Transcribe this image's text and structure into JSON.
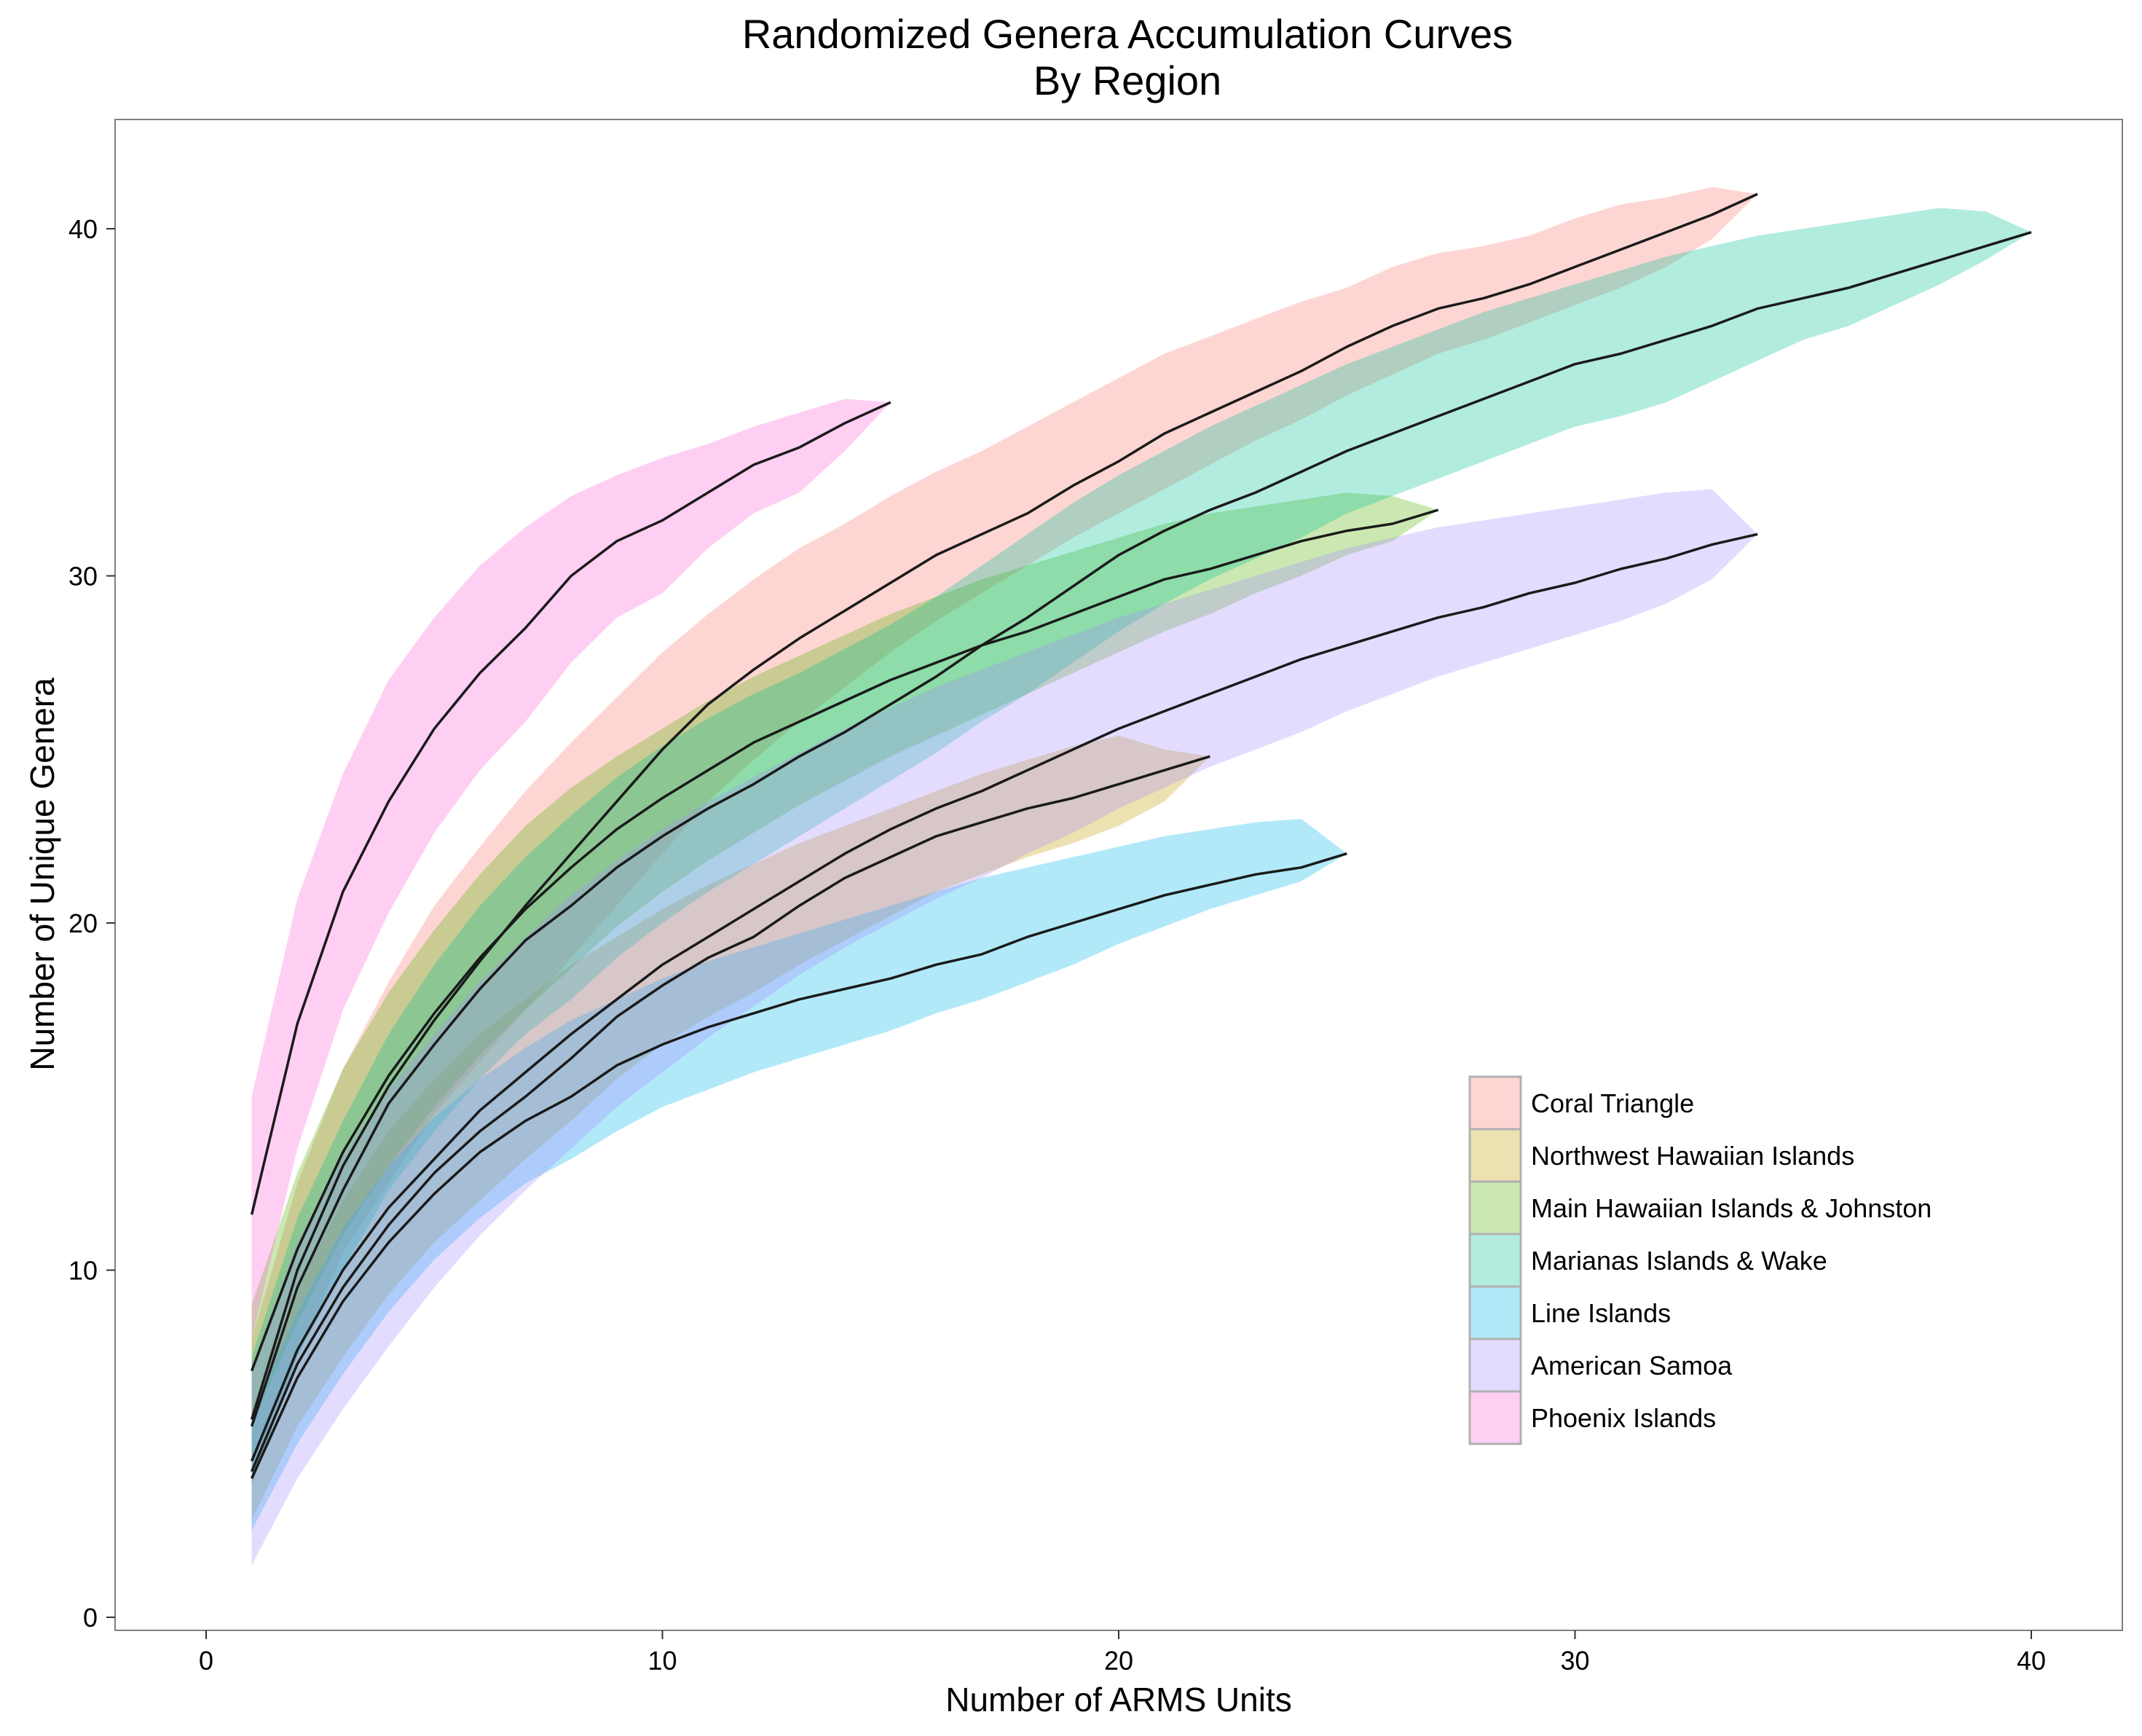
{
  "chart_data": {
    "type": "area",
    "title": "Randomized Genera Accumulation Curves",
    "subtitle": "By Region",
    "xlabel": "Number of ARMS Units",
    "ylabel": "Number of Unique Genera",
    "xlim": [
      -2,
      42
    ],
    "ylim": [
      -0.5,
      43
    ],
    "xticks": [
      0,
      10,
      20,
      30,
      40
    ],
    "yticks": [
      0,
      10,
      20,
      30,
      40
    ],
    "grid": false,
    "legend_position": "right-inside",
    "series": [
      {
        "name": "Coral Triangle",
        "color": "#F8766D",
        "x": [
          1,
          2,
          3,
          4,
          5,
          6,
          7,
          8,
          9,
          10,
          11,
          12,
          13,
          14,
          15,
          16,
          17,
          18,
          19,
          20,
          21,
          22,
          23,
          24,
          25,
          26,
          27,
          28,
          29,
          30,
          31,
          32,
          33,
          34
        ],
        "mean": [
          5.7,
          10.0,
          13.0,
          15.3,
          17.2,
          18.9,
          20.5,
          22.0,
          23.5,
          25.0,
          26.3,
          27.3,
          28.2,
          29.0,
          29.8,
          30.6,
          31.2,
          31.8,
          32.6,
          33.3,
          34.1,
          34.7,
          35.3,
          35.9,
          36.6,
          37.2,
          37.7,
          38.0,
          38.4,
          38.9,
          39.4,
          39.9,
          40.4,
          41.0
        ],
        "lower": [
          3.8,
          7.5,
          10.5,
          12.5,
          14.5,
          16.0,
          17.5,
          19.0,
          20.5,
          22.0,
          23.5,
          24.7,
          25.8,
          26.8,
          27.8,
          28.7,
          29.5,
          30.3,
          31.1,
          31.8,
          32.5,
          33.2,
          33.9,
          34.5,
          35.2,
          35.8,
          36.4,
          36.8,
          37.3,
          37.8,
          38.3,
          38.9,
          39.7,
          41.0
        ],
        "upper": [
          8.0,
          12.5,
          15.8,
          18.3,
          20.5,
          22.2,
          23.8,
          25.2,
          26.5,
          27.8,
          28.9,
          29.9,
          30.8,
          31.5,
          32.3,
          33.0,
          33.6,
          34.3,
          35.0,
          35.7,
          36.4,
          36.9,
          37.4,
          37.9,
          38.3,
          38.9,
          39.3,
          39.5,
          39.8,
          40.3,
          40.7,
          40.9,
          41.2,
          41.0
        ]
      },
      {
        "name": "Northwest Hawaiian Islands",
        "color": "#C49A00",
        "x": [
          1,
          2,
          3,
          4,
          5,
          6,
          7,
          8,
          9,
          10,
          11,
          12,
          13,
          14,
          15,
          16,
          17,
          18,
          19,
          20,
          21,
          22
        ],
        "mean": [
          4.2,
          7.3,
          9.5,
          11.3,
          12.8,
          14.0,
          15.0,
          16.1,
          17.3,
          18.2,
          19.0,
          19.6,
          20.5,
          21.3,
          21.9,
          22.5,
          22.9,
          23.3,
          23.6,
          24.0,
          24.4,
          24.8
        ],
        "lower": [
          2.8,
          5.5,
          7.5,
          9.3,
          10.8,
          12.0,
          13.2,
          14.3,
          15.5,
          16.5,
          17.3,
          18.0,
          18.8,
          19.5,
          20.2,
          20.9,
          21.4,
          21.9,
          22.3,
          22.8,
          23.5,
          24.8
        ],
        "upper": [
          6.0,
          9.5,
          12.0,
          14.0,
          15.5,
          16.8,
          17.8,
          18.8,
          19.6,
          20.4,
          21.1,
          21.7,
          22.3,
          22.8,
          23.3,
          23.8,
          24.3,
          24.7,
          25.1,
          25.4,
          25.0,
          24.8
        ]
      },
      {
        "name": "Main Hawaiian Islands & Johnston",
        "color": "#53B400",
        "x": [
          1,
          2,
          3,
          4,
          5,
          6,
          7,
          8,
          9,
          10,
          11,
          12,
          13,
          14,
          15,
          16,
          17,
          18,
          19,
          20,
          21,
          22,
          23,
          24,
          25,
          26,
          27
        ],
        "mean": [
          7.1,
          10.6,
          13.4,
          15.6,
          17.4,
          19.0,
          20.4,
          21.6,
          22.7,
          23.6,
          24.4,
          25.2,
          25.8,
          26.4,
          27.0,
          27.5,
          28.0,
          28.4,
          28.9,
          29.4,
          29.9,
          30.2,
          30.6,
          31.0,
          31.3,
          31.5,
          31.9
        ],
        "lower": [
          5.5,
          8.5,
          11.0,
          13.0,
          14.7,
          16.2,
          17.5,
          18.7,
          19.9,
          20.9,
          21.8,
          22.6,
          23.4,
          24.1,
          24.8,
          25.4,
          26.0,
          26.6,
          27.2,
          27.8,
          28.4,
          28.9,
          29.5,
          30.0,
          30.6,
          31.0,
          31.9
        ],
        "upper": [
          9.0,
          12.8,
          15.8,
          18.0,
          19.8,
          21.4,
          22.8,
          23.9,
          24.8,
          25.6,
          26.4,
          27.1,
          27.7,
          28.3,
          28.9,
          29.4,
          29.9,
          30.3,
          30.7,
          31.1,
          31.5,
          31.8,
          32.0,
          32.2,
          32.4,
          32.3,
          31.9
        ]
      },
      {
        "name": "Marianas Islands & Wake",
        "color": "#00C094",
        "x": [
          1,
          2,
          3,
          4,
          5,
          6,
          7,
          8,
          9,
          10,
          11,
          12,
          13,
          14,
          15,
          16,
          17,
          18,
          19,
          20,
          21,
          22,
          23,
          24,
          25,
          26,
          27,
          28,
          29,
          30,
          31,
          32,
          33,
          34,
          35,
          36,
          37,
          38,
          39,
          40
        ],
        "mean": [
          5.5,
          9.5,
          12.3,
          14.8,
          16.5,
          18.1,
          19.5,
          20.5,
          21.6,
          22.5,
          23.3,
          24.0,
          24.8,
          25.5,
          26.3,
          27.1,
          28.0,
          28.8,
          29.7,
          30.6,
          31.3,
          31.9,
          32.4,
          33.0,
          33.6,
          34.1,
          34.6,
          35.1,
          35.6,
          36.1,
          36.4,
          36.8,
          37.2,
          37.7,
          38.0,
          38.3,
          38.7,
          39.1,
          39.5,
          39.9
        ],
        "lower": [
          3.8,
          7.5,
          10.0,
          12.3,
          14.0,
          15.5,
          16.8,
          17.8,
          19.0,
          20.0,
          20.9,
          21.7,
          22.5,
          23.3,
          24.1,
          24.9,
          25.8,
          26.6,
          27.5,
          28.4,
          29.2,
          29.9,
          30.5,
          31.1,
          31.8,
          32.3,
          32.8,
          33.3,
          33.8,
          34.3,
          34.6,
          35.0,
          35.6,
          36.2,
          36.8,
          37.2,
          37.8,
          38.4,
          39.1,
          39.9
        ],
        "upper": [
          7.5,
          11.5,
          14.3,
          16.8,
          18.8,
          20.5,
          21.9,
          23.1,
          24.2,
          25.1,
          25.9,
          26.6,
          27.2,
          27.9,
          28.6,
          29.4,
          30.3,
          31.2,
          32.1,
          32.9,
          33.6,
          34.3,
          34.9,
          35.5,
          36.1,
          36.6,
          37.1,
          37.6,
          38.0,
          38.4,
          38.8,
          39.2,
          39.5,
          39.8,
          40.0,
          40.2,
          40.4,
          40.6,
          40.5,
          39.9
        ]
      },
      {
        "name": "Line Islands",
        "color": "#00B6EB",
        "x": [
          1,
          2,
          3,
          4,
          5,
          6,
          7,
          8,
          9,
          10,
          11,
          12,
          13,
          14,
          15,
          16,
          17,
          18,
          19,
          20,
          21,
          22,
          23,
          24,
          25
        ],
        "mean": [
          4.0,
          6.9,
          9.1,
          10.8,
          12.2,
          13.4,
          14.3,
          15.0,
          15.9,
          16.5,
          17.0,
          17.4,
          17.8,
          18.1,
          18.4,
          18.8,
          19.1,
          19.6,
          20.0,
          20.4,
          20.8,
          21.1,
          21.4,
          21.6,
          22.0
        ],
        "lower": [
          2.5,
          5.0,
          7.0,
          8.8,
          10.3,
          11.5,
          12.5,
          13.2,
          14.0,
          14.7,
          15.2,
          15.7,
          16.1,
          16.5,
          16.9,
          17.4,
          17.8,
          18.3,
          18.8,
          19.4,
          19.9,
          20.4,
          20.8,
          21.2,
          22.0
        ],
        "upper": [
          5.8,
          8.8,
          11.2,
          13.0,
          14.4,
          15.5,
          16.4,
          17.2,
          17.8,
          18.4,
          18.9,
          19.3,
          19.7,
          20.1,
          20.5,
          20.9,
          21.3,
          21.6,
          21.9,
          22.2,
          22.5,
          22.7,
          22.9,
          23.0,
          22.0
        ]
      },
      {
        "name": "American Samoa",
        "color": "#A58AFF",
        "x": [
          1,
          2,
          3,
          4,
          5,
          6,
          7,
          8,
          9,
          10,
          11,
          12,
          13,
          14,
          15,
          16,
          17,
          18,
          19,
          20,
          21,
          22,
          23,
          24,
          25,
          26,
          27,
          28,
          29,
          30,
          31,
          32,
          33,
          34
        ],
        "mean": [
          4.5,
          7.7,
          10.0,
          11.8,
          13.2,
          14.6,
          15.7,
          16.8,
          17.8,
          18.8,
          19.6,
          20.4,
          21.2,
          22.0,
          22.7,
          23.3,
          23.8,
          24.4,
          25.0,
          25.6,
          26.1,
          26.6,
          27.1,
          27.6,
          28.0,
          28.4,
          28.8,
          29.1,
          29.5,
          29.8,
          30.2,
          30.5,
          30.9,
          31.2
        ],
        "lower": [
          1.5,
          4.0,
          6.0,
          7.8,
          9.5,
          11.0,
          12.3,
          13.5,
          14.7,
          15.7,
          16.7,
          17.6,
          18.5,
          19.3,
          20.0,
          20.7,
          21.3,
          22.0,
          22.6,
          23.3,
          23.9,
          24.5,
          25.0,
          25.5,
          26.1,
          26.6,
          27.1,
          27.5,
          27.9,
          28.3,
          28.7,
          29.2,
          29.9,
          31.2
        ],
        "upper": [
          7.2,
          10.8,
          13.3,
          15.2,
          16.8,
          18.3,
          19.6,
          20.8,
          21.8,
          22.7,
          23.5,
          24.2,
          24.9,
          25.6,
          26.2,
          26.8,
          27.3,
          27.8,
          28.3,
          28.8,
          29.2,
          29.6,
          30.0,
          30.4,
          30.8,
          31.1,
          31.4,
          31.6,
          31.8,
          32.0,
          32.2,
          32.4,
          32.5,
          31.2
        ]
      },
      {
        "name": "Phoenix Islands",
        "color": "#FB61D7",
        "x": [
          1,
          2,
          3,
          4,
          5,
          6,
          7,
          8,
          9,
          10,
          11,
          12,
          13,
          14,
          15
        ],
        "mean": [
          11.6,
          17.1,
          20.9,
          23.5,
          25.6,
          27.2,
          28.5,
          30.0,
          31.0,
          31.6,
          32.4,
          33.2,
          33.7,
          34.4,
          35.0
        ],
        "lower": [
          8.0,
          13.5,
          17.5,
          20.3,
          22.6,
          24.4,
          25.8,
          27.5,
          28.8,
          29.5,
          30.8,
          31.8,
          32.4,
          33.6,
          35.0
        ],
        "upper": [
          15.0,
          20.7,
          24.3,
          27.0,
          28.8,
          30.3,
          31.4,
          32.3,
          32.9,
          33.4,
          33.8,
          34.3,
          34.7,
          35.1,
          35.0
        ]
      }
    ]
  }
}
